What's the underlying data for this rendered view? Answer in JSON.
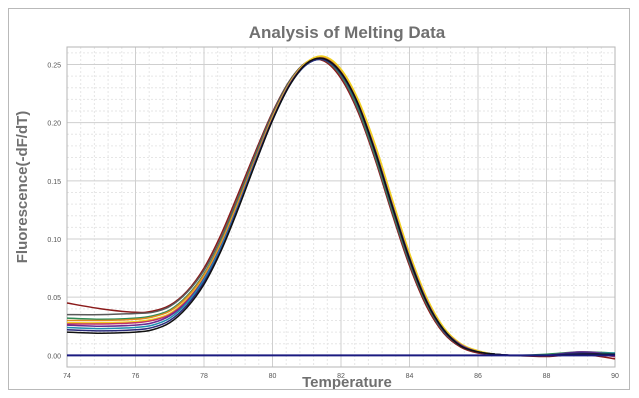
{
  "chart_data": {
    "type": "line",
    "title": "Analysis of Melting Data",
    "xlabel": "Temperature",
    "ylabel": "Fluorescence(-dF/dT)",
    "xlim": [
      74,
      90
    ],
    "ylim": [
      -0.01,
      0.265
    ],
    "xticks": [
      "74",
      "76",
      "78",
      "80",
      "82",
      "84",
      "86",
      "88",
      "90"
    ],
    "yticks": [
      "0.00",
      "0.05",
      "0.10",
      "0.15",
      "0.20",
      "0.25"
    ],
    "grid": true,
    "x": [
      74,
      75,
      76,
      76.5,
      77,
      77.5,
      78,
      78.5,
      79,
      79.5,
      80,
      80.5,
      81,
      81.5,
      82,
      82.5,
      83,
      83.5,
      84,
      84.5,
      85,
      85.5,
      86,
      86.5,
      87,
      88,
      89,
      90
    ],
    "series": [
      {
        "color": "#8b1a1a",
        "values": [
          0.045,
          0.04,
          0.037,
          0.038,
          0.043,
          0.055,
          0.075,
          0.104,
          0.139,
          0.175,
          0.209,
          0.236,
          0.252,
          0.253,
          0.238,
          0.209,
          0.168,
          0.121,
          0.077,
          0.042,
          0.019,
          0.007,
          0.002,
          0.001,
          0.0,
          -0.001,
          0.001,
          -0.003
        ]
      },
      {
        "color": "#5a5a5a",
        "values": [
          0.035,
          0.035,
          0.036,
          0.037,
          0.042,
          0.054,
          0.073,
          0.101,
          0.136,
          0.173,
          0.208,
          0.236,
          0.252,
          0.254,
          0.24,
          0.211,
          0.17,
          0.123,
          0.079,
          0.044,
          0.02,
          0.008,
          0.003,
          0.001,
          0.0,
          0.0,
          0.002,
          0.0
        ]
      },
      {
        "color": "#2e8b57",
        "values": [
          0.032,
          0.031,
          0.032,
          0.034,
          0.039,
          0.051,
          0.07,
          0.098,
          0.133,
          0.17,
          0.205,
          0.234,
          0.251,
          0.254,
          0.241,
          0.213,
          0.172,
          0.125,
          0.081,
          0.045,
          0.021,
          0.008,
          0.003,
          0.001,
          0.0,
          0.001,
          0.003,
          0.002
        ]
      },
      {
        "color": "#e08a1e",
        "values": [
          0.03,
          0.03,
          0.031,
          0.033,
          0.038,
          0.05,
          0.069,
          0.097,
          0.132,
          0.169,
          0.205,
          0.234,
          0.252,
          0.256,
          0.244,
          0.217,
          0.177,
          0.13,
          0.085,
          0.048,
          0.023,
          0.009,
          0.003,
          0.001,
          0.0,
          0.0,
          0.002,
          0.001
        ]
      },
      {
        "color": "#f0d020",
        "values": [
          0.028,
          0.028,
          0.029,
          0.031,
          0.036,
          0.048,
          0.067,
          0.095,
          0.13,
          0.167,
          0.204,
          0.234,
          0.252,
          0.257,
          0.246,
          0.22,
          0.181,
          0.134,
          0.088,
          0.05,
          0.024,
          0.01,
          0.004,
          0.001,
          0.0,
          0.0,
          0.001,
          0.0
        ]
      },
      {
        "color": "#c0306a",
        "values": [
          0.027,
          0.027,
          0.028,
          0.03,
          0.035,
          0.047,
          0.066,
          0.094,
          0.129,
          0.167,
          0.203,
          0.233,
          0.251,
          0.255,
          0.243,
          0.216,
          0.176,
          0.129,
          0.084,
          0.047,
          0.022,
          0.009,
          0.003,
          0.001,
          0.0,
          0.0,
          0.002,
          -0.001
        ]
      },
      {
        "color": "#6a2c91",
        "values": [
          0.026,
          0.025,
          0.026,
          0.028,
          0.034,
          0.046,
          0.066,
          0.094,
          0.129,
          0.167,
          0.203,
          0.233,
          0.251,
          0.255,
          0.243,
          0.216,
          0.176,
          0.129,
          0.084,
          0.047,
          0.022,
          0.009,
          0.003,
          0.001,
          0.0,
          0.0,
          0.003,
          0.001
        ]
      },
      {
        "color": "#1f8fb0",
        "values": [
          0.024,
          0.023,
          0.024,
          0.026,
          0.032,
          0.045,
          0.065,
          0.093,
          0.128,
          0.166,
          0.202,
          0.232,
          0.25,
          0.254,
          0.242,
          0.215,
          0.175,
          0.128,
          0.083,
          0.046,
          0.022,
          0.008,
          0.003,
          0.001,
          0.0,
          0.0,
          0.001,
          0.002
        ]
      },
      {
        "color": "#2a2a7a",
        "values": [
          0.022,
          0.021,
          0.022,
          0.024,
          0.03,
          0.043,
          0.063,
          0.091,
          0.127,
          0.165,
          0.202,
          0.232,
          0.25,
          0.254,
          0.242,
          0.215,
          0.174,
          0.127,
          0.082,
          0.046,
          0.021,
          0.008,
          0.003,
          0.001,
          0.0,
          0.0,
          0.002,
          0.0
        ]
      },
      {
        "color": "#111111",
        "values": [
          0.02,
          0.019,
          0.02,
          0.022,
          0.028,
          0.041,
          0.061,
          0.09,
          0.126,
          0.165,
          0.202,
          0.232,
          0.251,
          0.255,
          0.243,
          0.216,
          0.175,
          0.128,
          0.083,
          0.046,
          0.022,
          0.008,
          0.003,
          0.001,
          0.0,
          0.0,
          0.001,
          0.001
        ]
      },
      {
        "color": "#1a1a80",
        "values": [
          0,
          0,
          0,
          0,
          0,
          0,
          0,
          0,
          0,
          0,
          0,
          0,
          0,
          0,
          0,
          0,
          0,
          0,
          0,
          0,
          0,
          0,
          0,
          0,
          0,
          0,
          0,
          0
        ]
      }
    ]
  }
}
